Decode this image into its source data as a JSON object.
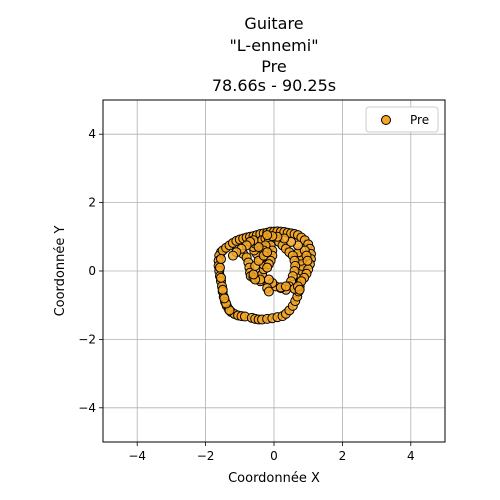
{
  "chart_data": {
    "type": "scatter",
    "title": [
      "Guitare",
      "\"L-ennemi\"",
      "Pre",
      "78.66s - 90.25s"
    ],
    "xlabel": "Coordonnée X",
    "ylabel": "Coordonnée Y",
    "xlim": [
      -5,
      5
    ],
    "ylim": [
      -5,
      5
    ],
    "xticks": [
      -4,
      -2,
      0,
      2,
      4
    ],
    "yticks": [
      -4,
      -2,
      0,
      2,
      4
    ],
    "tick_labels": {
      "x": [
        "−4",
        "−2",
        "0",
        "2",
        "4"
      ],
      "y": [
        "−4",
        "−2",
        "0",
        "2",
        "4"
      ]
    },
    "grid": true,
    "legend_position": "top-right",
    "series": [
      {
        "name": "Pre",
        "color": "#f5a623",
        "edgecolor": "#000000",
        "points": [
          [
            -1.55,
            0.55
          ],
          [
            -1.6,
            0.45
          ],
          [
            -1.62,
            0.3
          ],
          [
            -1.62,
            0.15
          ],
          [
            -1.6,
            0.0
          ],
          [
            -1.58,
            -0.15
          ],
          [
            -1.55,
            -0.3
          ],
          [
            -1.52,
            -0.45
          ],
          [
            -1.5,
            -0.6
          ],
          [
            -1.47,
            -0.75
          ],
          [
            -1.43,
            -0.9
          ],
          [
            -1.38,
            -1.02
          ],
          [
            -1.32,
            -1.12
          ],
          [
            -1.25,
            -1.2
          ],
          [
            -1.15,
            -1.26
          ],
          [
            -1.05,
            -1.3
          ],
          [
            -0.95,
            -1.32
          ],
          [
            -0.85,
            -1.33
          ],
          [
            -0.65,
            -1.37
          ],
          [
            -0.55,
            -1.4
          ],
          [
            -0.45,
            -1.42
          ],
          [
            -0.35,
            -1.42
          ],
          [
            -0.2,
            -1.4
          ],
          [
            -0.05,
            -1.38
          ],
          [
            0.1,
            -1.35
          ],
          [
            0.25,
            -1.32
          ],
          [
            0.35,
            -1.25
          ],
          [
            0.45,
            -1.15
          ],
          [
            0.55,
            -1.02
          ],
          [
            0.62,
            -0.88
          ],
          [
            0.68,
            -0.75
          ],
          [
            0.72,
            -0.6
          ],
          [
            0.75,
            -0.45
          ],
          [
            0.78,
            -0.3
          ],
          [
            0.8,
            -0.15
          ],
          [
            0.82,
            0.0
          ],
          [
            0.82,
            0.15
          ],
          [
            0.8,
            0.3
          ],
          [
            0.78,
            0.45
          ],
          [
            0.72,
            0.55
          ],
          [
            -1.5,
            0.6
          ],
          [
            -1.4,
            0.68
          ],
          [
            -1.3,
            0.75
          ],
          [
            -1.2,
            0.82
          ],
          [
            -1.1,
            0.88
          ],
          [
            -1.0,
            0.92
          ],
          [
            -0.9,
            0.95
          ],
          [
            -0.8,
            0.98
          ],
          [
            -0.7,
            1.0
          ],
          [
            -0.6,
            1.02
          ],
          [
            -0.5,
            1.05
          ],
          [
            -0.4,
            1.08
          ],
          [
            -0.3,
            1.1
          ],
          [
            -0.2,
            1.12
          ],
          [
            -0.1,
            1.15
          ],
          [
            0.0,
            1.15
          ],
          [
            0.1,
            1.16
          ],
          [
            0.2,
            1.15
          ],
          [
            0.3,
            1.14
          ],
          [
            0.4,
            1.12
          ],
          [
            0.5,
            1.1
          ],
          [
            0.6,
            1.08
          ],
          [
            0.7,
            1.05
          ],
          [
            0.8,
            0.98
          ],
          [
            0.9,
            0.9
          ],
          [
            1.0,
            0.78
          ],
          [
            1.05,
            0.65
          ],
          [
            1.08,
            0.5
          ],
          [
            1.08,
            0.35
          ],
          [
            1.05,
            0.2
          ],
          [
            1.0,
            0.05
          ],
          [
            0.95,
            -0.08
          ],
          [
            0.88,
            -0.2
          ],
          [
            0.8,
            -0.3
          ],
          [
            -0.9,
            0.5
          ],
          [
            -0.8,
            0.4
          ],
          [
            -0.75,
            0.25
          ],
          [
            -0.72,
            0.1
          ],
          [
            -0.7,
            -0.05
          ],
          [
            -0.68,
            -0.15
          ],
          [
            -0.6,
            -0.2
          ],
          [
            -0.45,
            -0.18
          ],
          [
            -0.35,
            -0.1
          ],
          [
            -0.3,
            0.05
          ],
          [
            -0.32,
            0.2
          ],
          [
            -0.4,
            0.35
          ],
          [
            -0.5,
            0.5
          ],
          [
            -0.58,
            0.6
          ],
          [
            -0.6,
            0.7
          ],
          [
            -0.55,
            0.8
          ],
          [
            -0.45,
            0.85
          ],
          [
            -0.35,
            0.9
          ],
          [
            -0.25,
            0.95
          ],
          [
            -0.15,
            0.9
          ],
          [
            -0.1,
            0.75
          ],
          [
            -0.05,
            0.6
          ],
          [
            -0.05,
            0.45
          ],
          [
            -0.1,
            0.3
          ],
          [
            -0.15,
            0.2
          ],
          [
            -0.2,
            0.1
          ],
          [
            -0.25,
            0.75
          ],
          [
            -0.3,
            0.6
          ],
          [
            -0.45,
            0.7
          ],
          [
            -0.6,
            0.9
          ],
          [
            -0.7,
            0.85
          ],
          [
            -0.8,
            0.75
          ],
          [
            -0.95,
            0.65
          ],
          [
            -1.1,
            0.55
          ],
          [
            -1.2,
            0.45
          ],
          [
            -0.4,
            -0.3
          ],
          [
            -0.4,
            -0.25
          ],
          [
            -0.55,
            -0.25
          ],
          [
            -0.6,
            -0.1
          ],
          [
            -0.55,
            0.15
          ],
          [
            -0.45,
            0.3
          ],
          [
            -0.3,
            0.45
          ],
          [
            -0.2,
            0.55
          ],
          [
            0.15,
            0.85
          ],
          [
            0.25,
            0.75
          ],
          [
            0.35,
            0.65
          ],
          [
            0.45,
            0.55
          ],
          [
            0.55,
            0.45
          ],
          [
            0.6,
            0.3
          ],
          [
            0.62,
            0.15
          ],
          [
            0.6,
            0.0
          ],
          [
            0.55,
            -0.15
          ],
          [
            0.5,
            -0.3
          ],
          [
            0.45,
            -0.45
          ],
          [
            0.35,
            -0.55
          ],
          [
            0.2,
            -0.5
          ],
          [
            0.05,
            -0.45
          ],
          [
            -0.05,
            -0.35
          ],
          [
            -0.15,
            -0.25
          ],
          [
            -0.2,
            -0.5
          ],
          [
            -0.15,
            -0.6
          ],
          [
            0.2,
            -0.48
          ],
          [
            0.35,
            -0.45
          ],
          [
            0.6,
            -0.52
          ],
          [
            0.7,
            -0.45
          ],
          [
            0.75,
            -0.55
          ],
          [
            -1.3,
            -1.15
          ],
          [
            -1.4,
            -0.95
          ],
          [
            -1.45,
            -0.8
          ],
          [
            -1.5,
            -0.55
          ],
          [
            -1.55,
            -0.2
          ],
          [
            -1.58,
            0.1
          ],
          [
            -1.55,
            0.35
          ],
          [
            0.9,
            0.6
          ],
          [
            0.95,
            0.45
          ],
          [
            0.98,
            0.3
          ],
          [
            0.7,
            0.75
          ],
          [
            0.5,
            0.85
          ],
          [
            0.3,
            0.95
          ],
          [
            0.1,
            1.0
          ],
          [
            -0.05,
            1.02
          ],
          [
            -0.2,
            1.05
          ]
        ]
      }
    ]
  }
}
